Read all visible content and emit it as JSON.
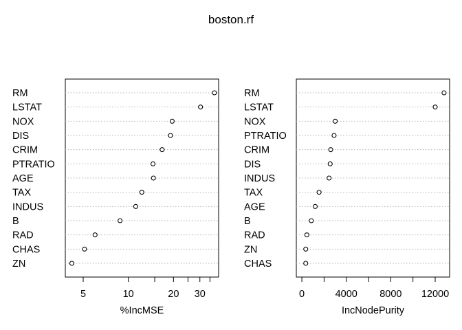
{
  "chart_data": [
    {
      "type": "scatter",
      "title": "boston.rf",
      "xlabel": "%IncMSE",
      "ylabel": "",
      "xscale": "log",
      "xticks": [
        5,
        10,
        20,
        30
      ],
      "xlim": [
        3.8,
        40
      ],
      "grid": "dotted horizontal",
      "categories": [
        "RM",
        "LSTAT",
        "NOX",
        "DIS",
        "CRIM",
        "PTRATIO",
        "AGE",
        "TAX",
        "INDUS",
        "B",
        "RAD",
        "CHAS",
        "ZN"
      ],
      "values": [
        37.5,
        30.3,
        19.6,
        19.1,
        16.8,
        14.6,
        14.7,
        12.3,
        11.2,
        8.8,
        6.0,
        5.1,
        4.2
      ]
    },
    {
      "type": "scatter",
      "title": "boston.rf",
      "xlabel": "IncNodePurity",
      "ylabel": "",
      "xscale": "linear",
      "xticks": [
        0,
        4000,
        8000,
        12000
      ],
      "xlim": [
        -500,
        13300
      ],
      "grid": "dotted horizontal",
      "categories": [
        "RM",
        "LSTAT",
        "NOX",
        "PTRATIO",
        "CRIM",
        "DIS",
        "INDUS",
        "TAX",
        "AGE",
        "B",
        "RAD",
        "ZN",
        "CHAS"
      ],
      "values": [
        12800,
        12000,
        3000,
        2900,
        2600,
        2550,
        2450,
        1550,
        1200,
        850,
        450,
        350,
        350
      ]
    }
  ]
}
